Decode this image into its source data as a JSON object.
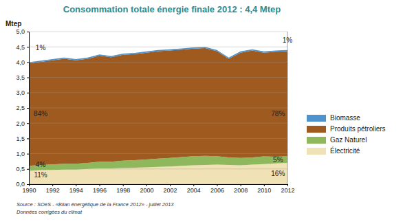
{
  "chart_data": {
    "type": "area",
    "title": "Consommation totale énergie finale 2012 : 4,4 Mtep",
    "y_label": "Mtep",
    "source": "Source : SOeS - «Bilan énergétique de la France 2012» - juillet 2013",
    "note": "Données corrigées du climat",
    "stacked": true,
    "grid": true,
    "legend": "right",
    "x": [
      1990,
      1991,
      1992,
      1993,
      1994,
      1995,
      1996,
      1997,
      1998,
      1999,
      2000,
      2001,
      2002,
      2003,
      2004,
      2005,
      2006,
      2007,
      2008,
      2009,
      2010,
      2011,
      2012
    ],
    "series": [
      {
        "name": "Biomasse",
        "color": "#4f93cc",
        "values": [
          0.04,
          0.04,
          0.04,
          0.04,
          0.04,
          0.04,
          0.04,
          0.04,
          0.04,
          0.04,
          0.04,
          0.04,
          0.04,
          0.04,
          0.04,
          0.04,
          0.04,
          0.04,
          0.04,
          0.04,
          0.04,
          0.04,
          0.04
        ]
      },
      {
        "name": "Produits pétroliers",
        "color": "#9e5a1f",
        "values": [
          3.36,
          3.38,
          3.41,
          3.44,
          3.39,
          3.41,
          3.47,
          3.42,
          3.47,
          3.47,
          3.5,
          3.52,
          3.52,
          3.52,
          3.52,
          3.53,
          3.44,
          3.23,
          3.45,
          3.5,
          3.4,
          3.44,
          3.44
        ]
      },
      {
        "name": "Gaz Naturel",
        "color": "#8fb85c",
        "values": [
          0.16,
          0.17,
          0.18,
          0.19,
          0.19,
          0.2,
          0.22,
          0.22,
          0.24,
          0.25,
          0.26,
          0.27,
          0.28,
          0.29,
          0.3,
          0.3,
          0.28,
          0.25,
          0.24,
          0.24,
          0.25,
          0.22,
          0.22
        ]
      },
      {
        "name": "Électricité",
        "color": "#f1e2b5",
        "values": [
          0.44,
          0.46,
          0.47,
          0.48,
          0.48,
          0.5,
          0.52,
          0.52,
          0.53,
          0.54,
          0.55,
          0.57,
          0.58,
          0.6,
          0.62,
          0.63,
          0.64,
          0.63,
          0.62,
          0.64,
          0.66,
          0.68,
          0.7
        ]
      }
    ],
    "xlim": [
      1990,
      2012
    ],
    "xticks": [
      1990,
      1992,
      1994,
      1996,
      1998,
      2000,
      2002,
      2004,
      2006,
      2008,
      2010,
      2012
    ],
    "ylim": [
      0,
      5
    ],
    "yticks": [
      {
        "value": 0,
        "label": "0,0"
      },
      {
        "value": 0.5,
        "label": "0,5"
      },
      {
        "value": 1,
        "label": "1,0"
      },
      {
        "value": 1.5,
        "label": "1,5"
      },
      {
        "value": 2,
        "label": "2,0"
      },
      {
        "value": 2.5,
        "label": "2,5"
      },
      {
        "value": 3,
        "label": "3,0"
      },
      {
        "value": 3.5,
        "label": "3,5"
      },
      {
        "value": 4,
        "label": "4,0"
      },
      {
        "value": 4.5,
        "label": "4,5"
      },
      {
        "value": 5,
        "label": "5,0"
      }
    ],
    "annotations": [
      {
        "text": "1%",
        "x": 1991,
        "y": 4.45
      },
      {
        "text": "1%",
        "x": 2012,
        "y": 4.7
      },
      {
        "text": "84%",
        "x": 1991,
        "y": 2.3
      },
      {
        "text": "78%",
        "x": 2011.2,
        "y": 2.3
      },
      {
        "text": "4%",
        "x": 1991,
        "y": 0.62
      },
      {
        "text": "5%",
        "x": 2011.2,
        "y": 0.78
      },
      {
        "text": "11%",
        "x": 1991,
        "y": 0.28
      },
      {
        "text": "16%",
        "x": 2011.2,
        "y": 0.33
      }
    ]
  }
}
